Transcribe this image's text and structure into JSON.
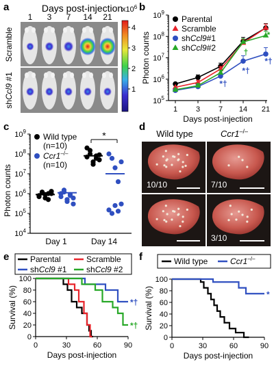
{
  "panels": {
    "a": {
      "letter": "a",
      "title": "Days post-injection",
      "days": [
        "1",
        "3",
        "7",
        "14",
        "21"
      ],
      "row_labels": [
        "Scramble",
        "sh",
        "Ccl9",
        " #1"
      ],
      "colorbar_unit": "x10",
      "colorbar_exp": "6",
      "colorbar_ticks": [
        "4",
        "3",
        "2",
        "1"
      ]
    },
    "b": {
      "letter": "b"
    },
    "c": {
      "letter": "c",
      "significance": "*"
    },
    "d": {
      "letter": "d",
      "col_labels": [
        "Wild type",
        "Ccr1"
      ],
      "col_sup": "–/–",
      "fractions": [
        "10/10",
        "7/10",
        "3/10"
      ]
    },
    "e": {
      "letter": "e"
    },
    "f": {
      "letter": "f"
    }
  },
  "chart_data": [
    {
      "panel": "b",
      "type": "line",
      "ylabel": "Photon counts",
      "xlabel": "Days post-injection",
      "yscale": "log",
      "ylim_exp": [
        5,
        9
      ],
      "x": [
        1,
        3,
        7,
        14,
        21
      ],
      "x_ticks": [
        "1",
        "3",
        "7",
        "14",
        "21"
      ],
      "series": [
        {
          "name": "Parental",
          "color": "#000000",
          "marker": "circle",
          "values": [
            600000,
            1200000,
            4000000,
            60000000,
            250000000
          ],
          "err": [
            0,
            0.12,
            0.15,
            0.18,
            0.2
          ]
        },
        {
          "name": "Scramble",
          "color": "#e8242b",
          "marker": "triangle",
          "values": [
            420000,
            700000,
            3000000,
            50000000,
            250000000
          ],
          "err": [
            0,
            0.1,
            0.12,
            0.15,
            0.18
          ]
        },
        {
          "name": "shCcl9#1",
          "color": "#2f4fc0",
          "marker": "circle",
          "values": [
            300000,
            450000,
            1400000,
            7000000,
            15000000
          ],
          "err": [
            0,
            0.1,
            0.12,
            0.25,
            0.3
          ]
        },
        {
          "name": "shCcl9#2",
          "color": "#27a827",
          "marker": "triangle",
          "values": [
            320000,
            500000,
            2000000,
            55000000,
            110000000
          ],
          "err": [
            0,
            0.1,
            0.12,
            0.15,
            0.2
          ]
        }
      ],
      "annotations": [
        {
          "text": "*",
          "x": 21,
          "y": 120000000,
          "color": "#27a827"
        },
        {
          "text": "†",
          "x": 14,
          "y": 18000000,
          "color": "#27a827"
        },
        {
          "text": "*†",
          "x": 7,
          "y": 600000,
          "color": "#2f4fc0"
        },
        {
          "text": "*†",
          "x": 14,
          "y": 2500000,
          "color": "#2f4fc0"
        },
        {
          "text": "*†",
          "x": 21,
          "y": 7000000,
          "color": "#2f4fc0"
        }
      ]
    },
    {
      "panel": "c",
      "type": "scatter",
      "ylabel": "Photon counts",
      "yscale": "log",
      "ylim_exp": [
        4,
        9
      ],
      "categories": [
        "Day 1",
        "Day 14"
      ],
      "series": [
        {
          "name": "Wild type",
          "n": "(n=10)",
          "color": "#000000",
          "values": [
            [
              800000,
              1200000,
              600000,
              1000000,
              1000000,
              700000,
              1100000,
              900000,
              500000,
              1300000
            ],
            [
              70000000,
              150000000,
              30000000,
              80000000,
              50000000,
              200000000,
              100000000,
              40000000,
              60000000,
              90000000
            ]
          ],
          "mean": [
            900000,
            80000000
          ]
        },
        {
          "name": "Ccr1",
          "name_sup": "–/–",
          "n": "(n=10)",
          "color": "#2f4fc0",
          "values": [
            [
              1000000,
              1500000,
              500000,
              800000,
              300000,
              700000,
              1200000,
              400000,
              900000,
              600000
            ],
            [
              100000000,
              60000000,
              20000000,
              4000000,
              300000,
              150000,
              100000,
              250000,
              130000,
              40000000
            ]
          ],
          "mean": [
            1100000,
            10000000
          ]
        }
      ]
    },
    {
      "panel": "e",
      "type": "line",
      "ylabel": "Survival (%)",
      "xlabel": "Days post-injection",
      "ylim": [
        0,
        100
      ],
      "xlim": [
        0,
        90
      ],
      "x_ticks": [
        0,
        30,
        60,
        90
      ],
      "y_ticks": [
        0,
        20,
        40,
        60,
        80,
        100
      ],
      "series": [
        {
          "name": "Parental",
          "color": "#000000",
          "steps": [
            [
              0,
              100
            ],
            [
              27,
              100
            ],
            [
              27,
              90
            ],
            [
              31,
              90
            ],
            [
              31,
              80
            ],
            [
              35,
              80
            ],
            [
              35,
              60
            ],
            [
              40,
              60
            ],
            [
              40,
              50
            ],
            [
              45,
              50
            ],
            [
              45,
              40
            ],
            [
              50,
              40
            ],
            [
              50,
              20
            ],
            [
              52,
              20
            ],
            [
              52,
              10
            ],
            [
              54,
              10
            ],
            [
              54,
              0
            ],
            [
              56,
              0
            ]
          ]
        },
        {
          "name": "Scramble",
          "color": "#e8242b",
          "steps": [
            [
              0,
              100
            ],
            [
              32,
              100
            ],
            [
              32,
              90
            ],
            [
              38,
              90
            ],
            [
              38,
              80
            ],
            [
              42,
              80
            ],
            [
              42,
              60
            ],
            [
              47,
              60
            ],
            [
              47,
              40
            ],
            [
              50,
              40
            ],
            [
              50,
              20
            ],
            [
              53,
              20
            ],
            [
              53,
              0
            ],
            [
              55,
              0
            ]
          ]
        },
        {
          "name": "shCcl9 #1",
          "color": "#2f4fc0",
          "steps": [
            [
              0,
              100
            ],
            [
              48,
              100
            ],
            [
              48,
              90
            ],
            [
              68,
              90
            ],
            [
              68,
              80
            ],
            [
              80,
              80
            ],
            [
              80,
              60
            ],
            [
              90,
              60
            ]
          ]
        },
        {
          "name": "shCcl9 #2",
          "color": "#27a827",
          "steps": [
            [
              0,
              100
            ],
            [
              45,
              100
            ],
            [
              45,
              90
            ],
            [
              58,
              90
            ],
            [
              58,
              80
            ],
            [
              65,
              80
            ],
            [
              65,
              60
            ],
            [
              75,
              60
            ],
            [
              75,
              50
            ],
            [
              80,
              50
            ],
            [
              80,
              40
            ],
            [
              85,
              40
            ],
            [
              85,
              20
            ],
            [
              90,
              20
            ]
          ]
        }
      ],
      "annotations": [
        {
          "text": "*†",
          "x": 90,
          "y": 60,
          "color": "#2f4fc0"
        },
        {
          "text": "*†",
          "x": 90,
          "y": 20,
          "color": "#27a827"
        }
      ]
    },
    {
      "panel": "f",
      "type": "line",
      "ylabel": "Survival (%)",
      "xlabel": "Days post-injection",
      "ylim": [
        0,
        100
      ],
      "xlim": [
        0,
        90
      ],
      "x_ticks": [
        0,
        30,
        60,
        90
      ],
      "y_ticks": [
        0,
        20,
        40,
        60,
        80,
        100
      ],
      "series": [
        {
          "name": "Wild type",
          "color": "#000000",
          "steps": [
            [
              0,
              100
            ],
            [
              28,
              100
            ],
            [
              28,
              95
            ],
            [
              31,
              95
            ],
            [
              31,
              85
            ],
            [
              35,
              85
            ],
            [
              35,
              75
            ],
            [
              38,
              75
            ],
            [
              38,
              65
            ],
            [
              41,
              65
            ],
            [
              41,
              55
            ],
            [
              44,
              55
            ],
            [
              44,
              45
            ],
            [
              47,
              45
            ],
            [
              47,
              35
            ],
            [
              51,
              35
            ],
            [
              51,
              25
            ],
            [
              56,
              25
            ],
            [
              56,
              15
            ],
            [
              62,
              15
            ],
            [
              62,
              8
            ],
            [
              70,
              8
            ],
            [
              70,
              0
            ],
            [
              75,
              0
            ]
          ]
        },
        {
          "name": "Ccr1",
          "name_sup": "–/–",
          "color": "#2f4fc0",
          "steps": [
            [
              0,
              100
            ],
            [
              40,
              100
            ],
            [
              40,
              95
            ],
            [
              65,
              95
            ],
            [
              65,
              85
            ],
            [
              72,
              85
            ],
            [
              72,
              75
            ],
            [
              90,
              75
            ]
          ]
        }
      ],
      "annotations": [
        {
          "text": "*",
          "x": 90,
          "y": 75,
          "color": "#2f4fc0"
        }
      ]
    }
  ]
}
